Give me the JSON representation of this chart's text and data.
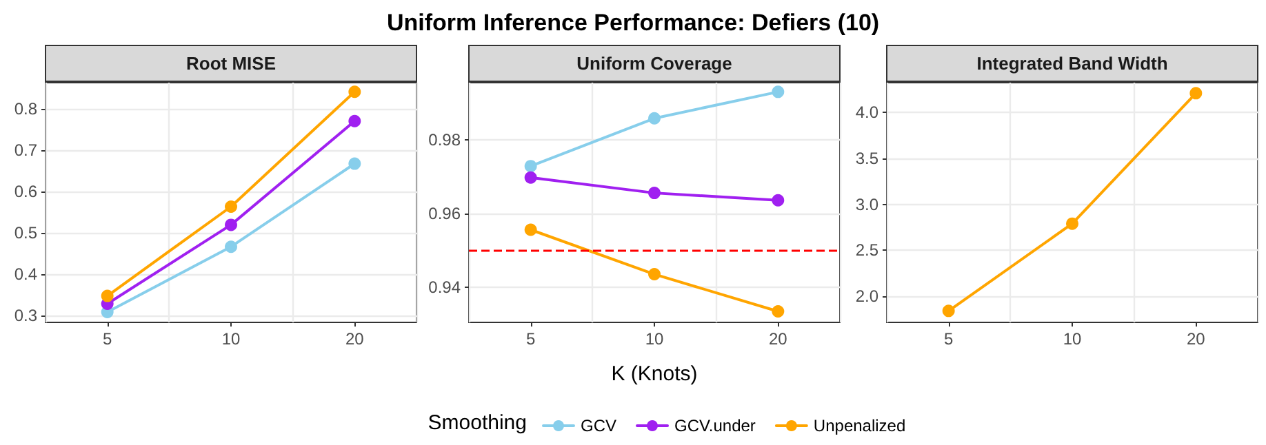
{
  "chart_data": [
    {
      "type": "line",
      "title": "Root MISE",
      "annotations": [
        "Uniform Inference Performance: Defiers (10)"
      ],
      "categories": [
        "5",
        "10",
        "20"
      ],
      "series": [
        {
          "color": "#87ceeb",
          "values": [
            0.308,
            0.466,
            0.667
          ]
        },
        {
          "color": "#a020f0",
          "values": [
            0.328,
            0.519,
            0.77
          ]
        },
        {
          "color": "#ffa500",
          "values": [
            0.347,
            0.563,
            0.841
          ]
        }
      ],
      "ylim": [
        0.283,
        0.863
      ],
      "yticks": [
        0.3,
        0.4,
        0.5,
        0.6,
        0.7,
        0.8
      ],
      "grid": true,
      "marker": "circle",
      "line_style": "solid"
    },
    {
      "type": "line",
      "title": "Uniform Coverage",
      "xlabel": "K (Knots)",
      "legend_title": "Smoothing",
      "legend": "bottom",
      "categories": [
        "5",
        "10",
        "20"
      ],
      "series": [
        {
          "name": "GCV",
          "color": "#87ceeb",
          "values": [
            0.9729,
            0.9859,
            0.9931
          ]
        },
        {
          "name": "GCV.under",
          "color": "#a020f0",
          "values": [
            0.9698,
            0.9656,
            0.9636
          ]
        },
        {
          "name": "Unpenalized",
          "color": "#ffa500",
          "values": [
            0.9556,
            0.9435,
            0.9334
          ]
        }
      ],
      "ylim": [
        0.9304,
        0.9956
      ],
      "yticks": [
        0.94,
        0.96,
        0.98
      ],
      "grid": true,
      "marker": "circle",
      "line_style": "solid",
      "ref_lines": [
        {
          "axis": "y",
          "value": 0.95,
          "color": "#ff0000",
          "line_style": "dashed"
        }
      ]
    },
    {
      "type": "line",
      "title": "Integrated Band Width",
      "categories": [
        "5",
        "10",
        "20"
      ],
      "series": [
        {
          "color": "#ffa500",
          "values": [
            1.84,
            2.79,
            4.21
          ]
        }
      ],
      "ylim": [
        1.715,
        4.325
      ],
      "yticks": [
        {
          "value": 2,
          "label": "2.0"
        },
        2.5,
        {
          "value": 3,
          "label": "3.0"
        },
        3.5,
        {
          "value": 4,
          "label": "4.0"
        }
      ],
      "grid": true,
      "marker": "circle",
      "line_style": "solid"
    }
  ]
}
